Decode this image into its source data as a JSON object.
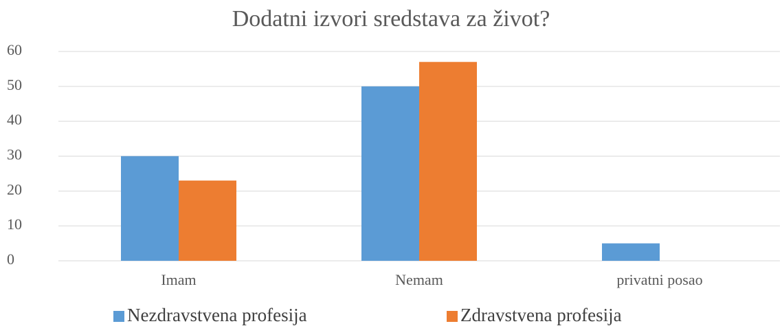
{
  "chart_data": {
    "type": "bar",
    "title": "Dodatni izvori sredstava za život?",
    "categories": [
      "Imam",
      "Nemam",
      "privatni posao"
    ],
    "series": [
      {
        "name": "Nezdravstvena profesija",
        "color": "#5b9bd5",
        "values": [
          30,
          50,
          5
        ]
      },
      {
        "name": "Zdravstvena profesija",
        "color": "#ed7d31",
        "values": [
          23,
          57,
          0
        ]
      }
    ],
    "ylim": [
      0,
      60
    ],
    "yticks": [
      0,
      10,
      20,
      30,
      40,
      50,
      60
    ],
    "grid": true,
    "legend": "bottom"
  }
}
